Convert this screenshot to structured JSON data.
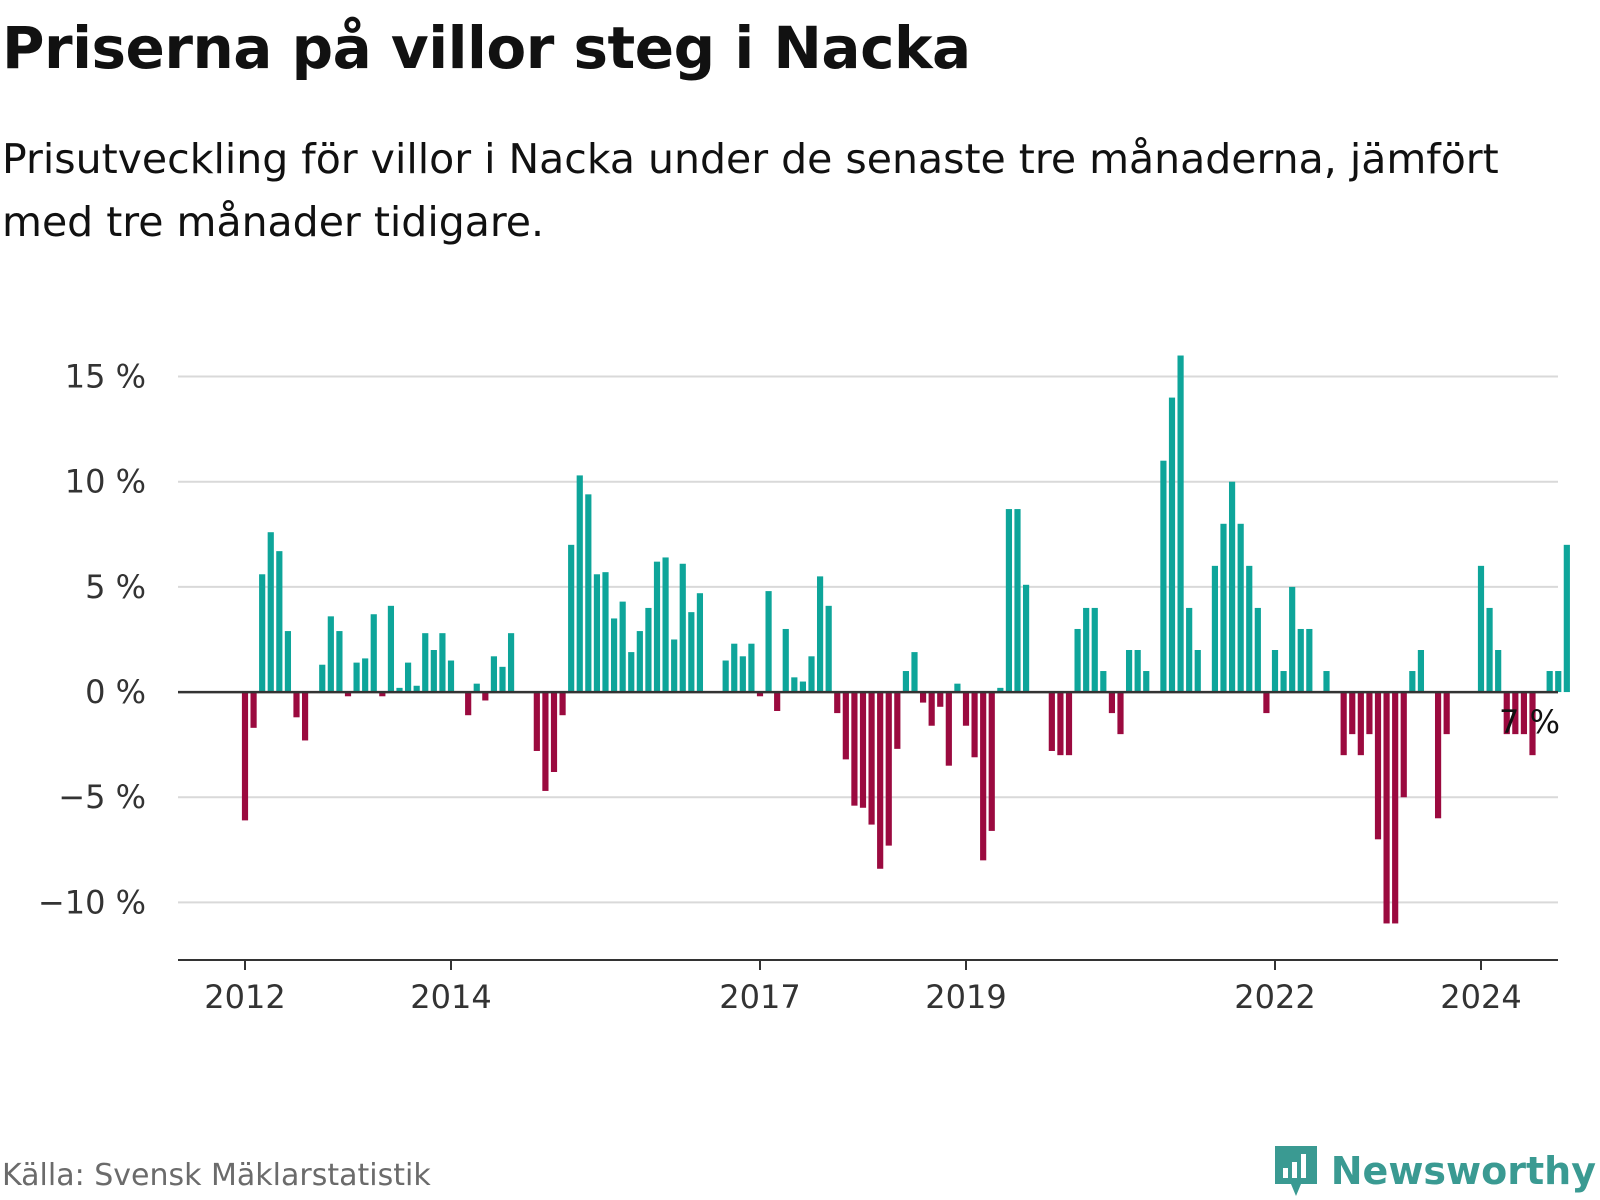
{
  "title": "Priserna på villor steg i Nacka",
  "subtitle": "Prisutveckling för villor i Nacka under de senaste tre månaderna, jämfört med tre månader tidigare.",
  "source": "Källa: Svensk Mäklarstatistik",
  "brand": "Newsworthy",
  "colors": {
    "positive": "#0ea59a",
    "negative": "#9b0a3f",
    "grid": "#d9d9d9",
    "axis": "#333333",
    "brand": "#3a9a92"
  },
  "chart_data": {
    "type": "bar",
    "title": "Priserna på villor steg i Nacka",
    "xlabel": "",
    "ylabel": "",
    "unit": "%",
    "ylim": [
      -12.5,
      16.5
    ],
    "x_start": 2012.0,
    "x_step_years": 0.0833,
    "yticks": [
      {
        "value": 15,
        "label": "15 %"
      },
      {
        "value": 10,
        "label": "10 %"
      },
      {
        "value": 5,
        "label": "5 %"
      },
      {
        "value": 0,
        "label": "0 %"
      },
      {
        "value": -5,
        "label": "−5 %"
      },
      {
        "value": -10,
        "label": "−10 %"
      }
    ],
    "xticks": [
      {
        "value": 2012,
        "label": "2012"
      },
      {
        "value": 2014,
        "label": "2014"
      },
      {
        "value": 2017,
        "label": "2017"
      },
      {
        "value": 2019,
        "label": "2019"
      },
      {
        "value": 2022,
        "label": "2022"
      },
      {
        "value": 2024,
        "label": "2024"
      }
    ],
    "values": [
      -6.1,
      -1.7,
      5.6,
      7.6,
      6.7,
      2.9,
      -1.2,
      -2.3,
      0,
      1.3,
      3.6,
      2.9,
      -0.2,
      1.4,
      1.6,
      3.7,
      -0.2,
      4.1,
      0.2,
      1.4,
      0.3,
      2.8,
      2.0,
      2.8,
      1.5,
      0,
      -1.1,
      0.4,
      -0.4,
      1.7,
      1.2,
      2.8,
      0,
      0,
      -2.8,
      -4.7,
      -3.8,
      -1.1,
      7.0,
      10.3,
      9.4,
      5.6,
      5.7,
      3.5,
      4.3,
      1.9,
      2.9,
      4.0,
      6.2,
      6.4,
      2.5,
      6.1,
      3.8,
      4.7,
      0,
      0,
      1.5,
      2.3,
      1.7,
      2.3,
      -0.2,
      4.8,
      -0.9,
      3.0,
      0.7,
      0.5,
      1.7,
      5.5,
      4.1,
      -1.0,
      -3.2,
      -5.4,
      -5.5,
      -6.3,
      -8.4,
      -7.3,
      -2.7,
      1.0,
      1.9,
      -0.5,
      -1.6,
      -0.7,
      -3.5,
      0.4,
      -1.6,
      -3.1,
      -8.0,
      -6.6,
      0.2,
      8.7,
      8.7,
      5.1,
      0,
      0,
      -2.8,
      -3.0,
      -3.0,
      3.0,
      4.0,
      4.0,
      1.0,
      -1.0,
      -2.0,
      2.0,
      2.0,
      1.0,
      0,
      11.0,
      14.0,
      16.0,
      4.0,
      2.0,
      0,
      6.0,
      8.0,
      10.0,
      8.0,
      6.0,
      4.0,
      -1.0,
      2.0,
      1.0,
      5.0,
      3.0,
      3.0,
      0,
      1.0,
      0,
      -3.0,
      -2.0,
      -3.0,
      -2.0,
      -7.0,
      -11.0,
      -11.0,
      -5.0,
      1.0,
      2.0,
      0,
      -6.0,
      -2.0,
      0,
      0,
      0,
      6.0,
      4.0,
      2.0,
      -2.0,
      -2.0,
      -2.0,
      -3.0,
      0,
      1.0,
      1.0,
      7.0
    ],
    "annotation": {
      "text": "7 %",
      "index": 150
    }
  }
}
